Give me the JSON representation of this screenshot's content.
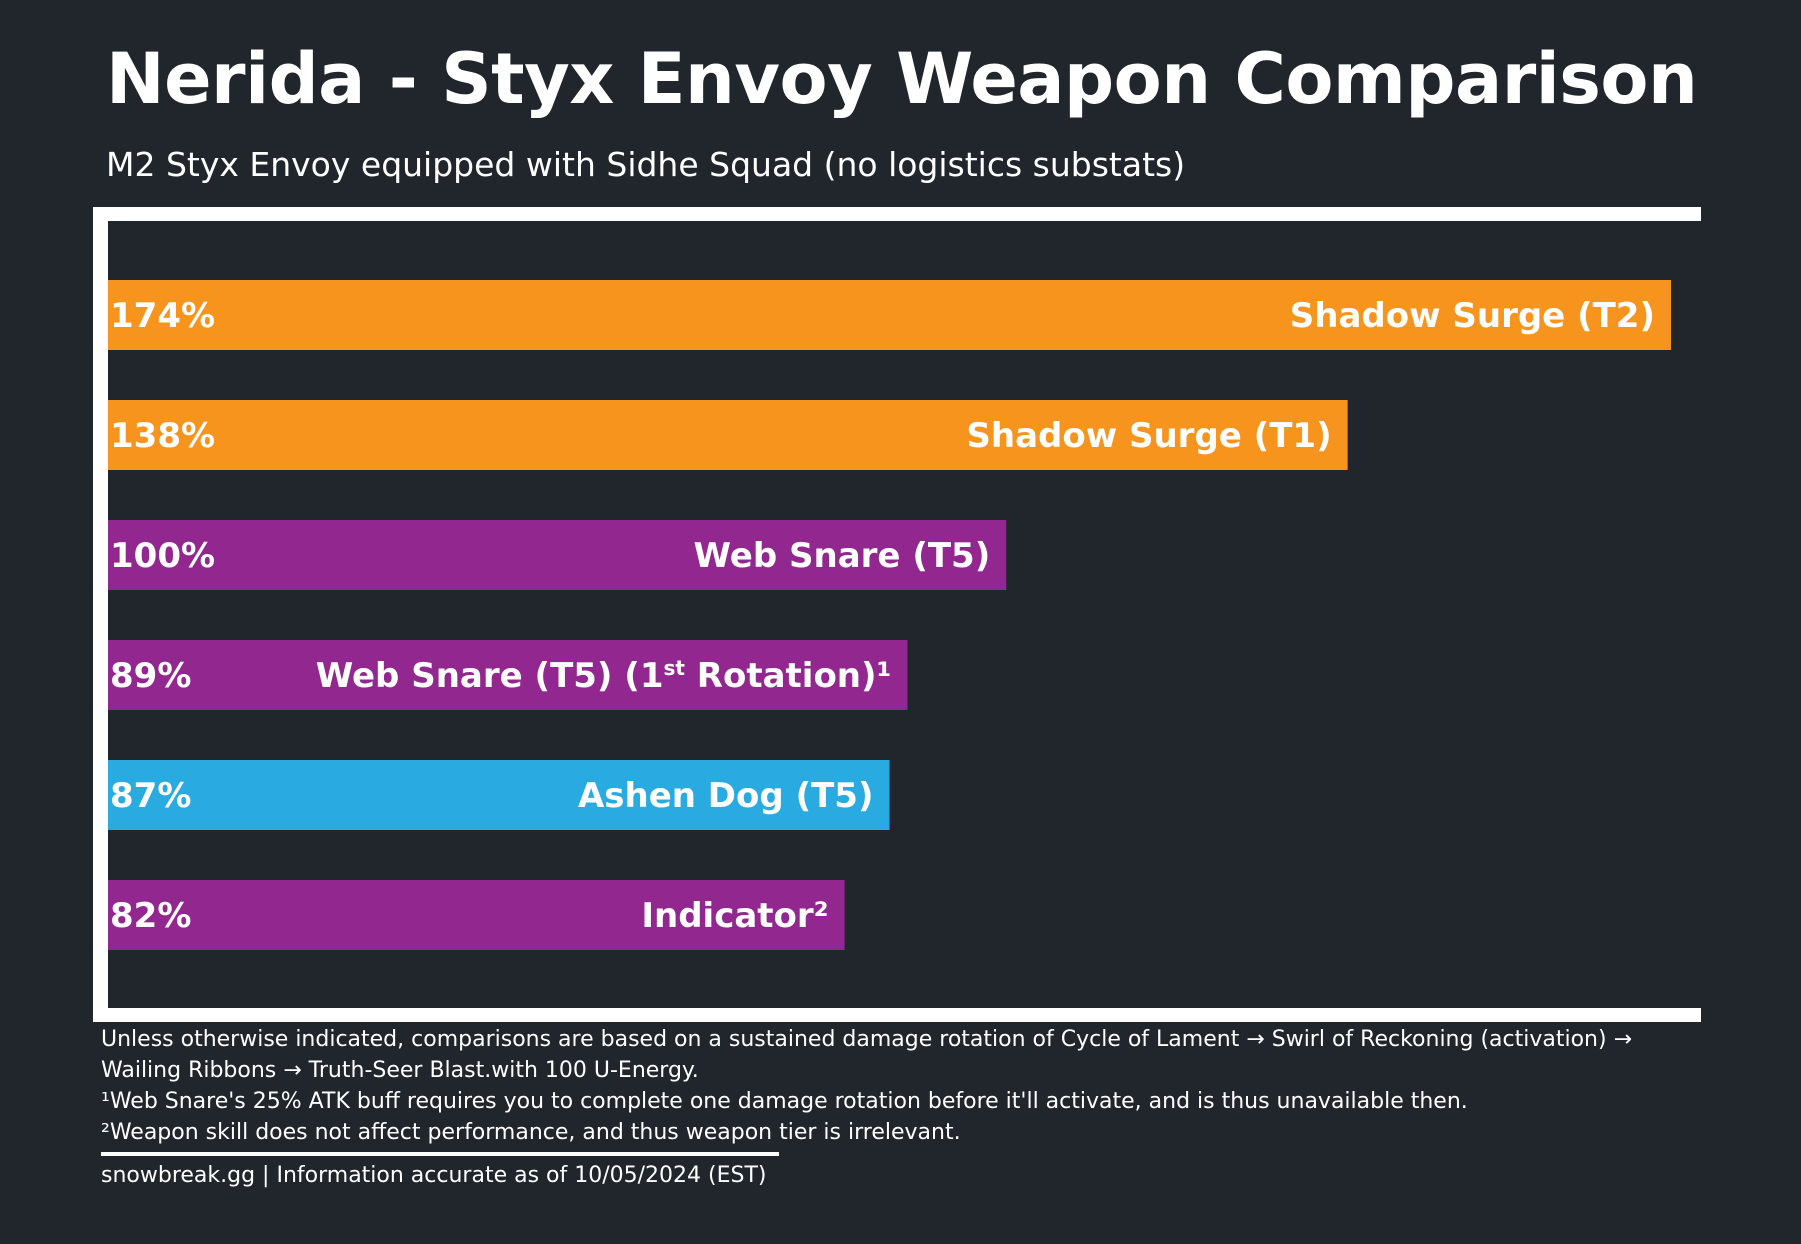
{
  "chart_data": {
    "type": "bar",
    "orientation": "horizontal",
    "title": "Nerida - Styx Envoy Weapon Comparison",
    "subtitle": "M2 Styx Envoy equipped with Sidhe Squad (no logistics substats)",
    "xlim": [
      0,
      174
    ],
    "categories": [
      "Shadow Surge (T2)",
      "Shadow Surge (T1)",
      "Web Snare (T5)",
      "Web Snare (T5) (1st Rotation)¹",
      "Ashen Dog (T5)",
      "Indicator²"
    ],
    "values": [
      174,
      138,
      100,
      89,
      87,
      82
    ],
    "value_labels": [
      "174%",
      "138%",
      "100%",
      "89%",
      "87%",
      "82%"
    ],
    "bar_colors": [
      "#f7941d",
      "#f7941d",
      "#92278f",
      "#92278f",
      "#29abe2",
      "#92278f"
    ],
    "grid": false,
    "legend": "none"
  },
  "notes": {
    "line1": "Unless otherwise indicated, comparisons are based on a sustained damage rotation of Cycle of Lament → Swirl of Reckoning (activation) →",
    "line2": "Wailing Ribbons → Truth-Seer Blast.with 100 U-Energy.",
    "line3": "¹Web Snare's 25% ATK buff requires you to complete one damage rotation before it'll activate, and is thus unavailable then.",
    "line4": "²Weapon skill does not affect performance, and thus weapon tier is irrelevant."
  },
  "credit": "snowbreak.gg | Information accurate as of 10/05/2024 (EST)"
}
